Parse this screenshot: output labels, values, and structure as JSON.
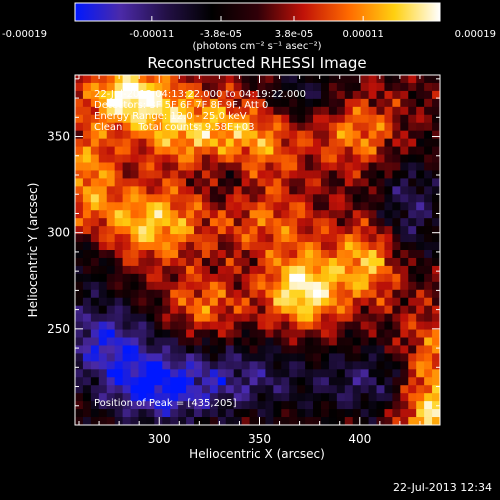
{
  "chart_data": {
    "type": "heatmap",
    "title": "Reconstructed RHESSI Image",
    "xlabel": "Heliocentric X (arcsec)",
    "ylabel": "Heliocentric Y (arcsec)",
    "xlim": [
      258,
      440
    ],
    "ylim": [
      200,
      382
    ],
    "xticks": [
      300,
      350,
      400
    ],
    "yticks": [
      250,
      300,
      350
    ],
    "colorbar": {
      "range": [
        -0.00019,
        0.00019
      ],
      "tick_values": [
        -0.00019,
        -0.00011,
        -3.8e-05,
        3.8e-05,
        0.00011,
        0.00019
      ],
      "tick_labels": [
        "-0.00019",
        "-0.00011",
        "-3.8e-05",
        "3.8e-05",
        "0.00011",
        "0.00019"
      ],
      "unit_label": "(photons cm⁻² s⁻¹ asec⁻²)",
      "colors": [
        "#0018ff",
        "#4b2aa8",
        "#231046",
        "#000000",
        "#300008",
        "#c01208",
        "#ff6a00",
        "#ffd010",
        "#ffffff"
      ]
    },
    "annotations": [
      "22-Jul-2013 04:13:22.000 to 04:19:22.000",
      "Detectors: 3F 5F 6F 7F 8F 9F, Att 0",
      "Energy Range: 12.0 - 25.0 keV",
      "Clean     Total counts: 9.58E+03"
    ],
    "peak_label": "Position of Peak = [435,205]",
    "sources": [
      {
        "x": 285,
        "y": 372,
        "sx": 14,
        "sy": 10,
        "a": 0.9
      },
      {
        "x": 312,
        "y": 355,
        "sx": 20,
        "sy": 14,
        "a": 0.7
      },
      {
        "x": 265,
        "y": 330,
        "sx": 10,
        "sy": 22,
        "a": 0.55
      },
      {
        "x": 296,
        "y": 305,
        "sx": 18,
        "sy": 14,
        "a": 0.75
      },
      {
        "x": 348,
        "y": 345,
        "sx": 16,
        "sy": 16,
        "a": 0.55
      },
      {
        "x": 400,
        "y": 352,
        "sx": 16,
        "sy": 14,
        "a": 0.55
      },
      {
        "x": 372,
        "y": 270,
        "sx": 14,
        "sy": 14,
        "a": 0.95
      },
      {
        "x": 405,
        "y": 285,
        "sx": 12,
        "sy": 14,
        "a": 0.7
      },
      {
        "x": 322,
        "y": 262,
        "sx": 14,
        "sy": 12,
        "a": 0.5
      },
      {
        "x": 355,
        "y": 305,
        "sx": 20,
        "sy": 12,
        "a": 0.4
      },
      {
        "x": 435,
        "y": 212,
        "sx": 12,
        "sy": 28,
        "a": 1.0
      },
      {
        "x": 300,
        "y": 220,
        "sx": 22,
        "sy": 14,
        "a": -1.0
      },
      {
        "x": 272,
        "y": 245,
        "sx": 18,
        "sy": 14,
        "a": -0.75
      },
      {
        "x": 408,
        "y": 222,
        "sx": 28,
        "sy": 14,
        "a": -0.55
      },
      {
        "x": 345,
        "y": 225,
        "sx": 18,
        "sy": 14,
        "a": -0.45
      },
      {
        "x": 425,
        "y": 312,
        "sx": 12,
        "sy": 22,
        "a": -0.55
      },
      {
        "x": 372,
        "y": 372,
        "sx": 14,
        "sy": 10,
        "a": -0.45
      },
      {
        "x": 335,
        "y": 330,
        "sx": 10,
        "sy": 10,
        "a": -0.35
      },
      {
        "x": 265,
        "y": 285,
        "sx": 10,
        "sy": 14,
        "a": -0.35
      }
    ]
  },
  "footer": {
    "date": "22-Jul-2013 12:34"
  }
}
